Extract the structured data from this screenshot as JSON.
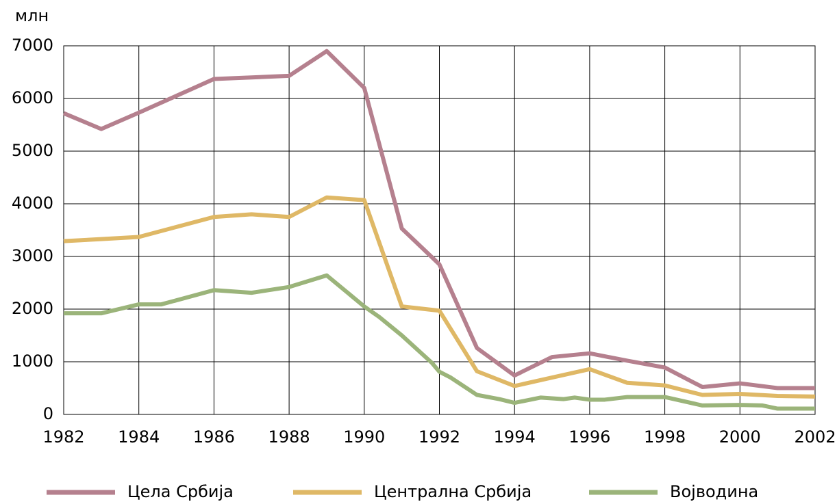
{
  "chart_data": {
    "type": "line",
    "ylabel": "млн",
    "xlim": [
      1982,
      2002
    ],
    "xticks": [
      1982,
      1984,
      1986,
      1988,
      1990,
      1992,
      1994,
      1996,
      1998,
      2000,
      2002
    ],
    "ylim": [
      0,
      7000
    ],
    "yticks": [
      0,
      1000,
      2000,
      3000,
      4000,
      5000,
      6000,
      7000
    ],
    "grid": true,
    "legend": "bottom",
    "series": [
      {
        "name": "Цела Србија",
        "color": "#b5808e",
        "x": [
          1982,
          1983,
          1984,
          1985,
          1986,
          1987,
          1988,
          1989,
          1990,
          1991,
          1992,
          1993,
          1994,
          1995,
          1996,
          1997,
          1998,
          1999,
          2000,
          2001,
          2002
        ],
        "values": [
          5720,
          5420,
          5730,
          6050,
          6370,
          6400,
          6430,
          6900,
          6200,
          3530,
          2850,
          1260,
          740,
          1090,
          1160,
          1020,
          890,
          520,
          590,
          500,
          500
        ]
      },
      {
        "name": "Централна Србија",
        "color": "#dfb866",
        "x": [
          1982,
          1983,
          1984,
          1985,
          1986,
          1987,
          1988,
          1989,
          1990,
          1991,
          1992,
          1993,
          1994,
          1995,
          1996,
          1997,
          1998,
          1999,
          2000,
          2001,
          2002
        ],
        "values": [
          3290,
          3330,
          3370,
          3560,
          3750,
          3800,
          3750,
          4120,
          4070,
          2050,
          1970,
          820,
          540,
          700,
          860,
          600,
          550,
          370,
          390,
          350,
          340
        ]
      },
      {
        "name": "Војводина",
        "color": "#9bb47a",
        "x": [
          1982,
          1983,
          1984,
          1984.6,
          1986,
          1987,
          1988,
          1989,
          1990,
          1990.4,
          1991,
          1991.8,
          1992,
          1992.3,
          1993,
          1993.6,
          1994,
          1994.7,
          1995.3,
          1995.6,
          1996,
          1996.4,
          1997,
          1998,
          1999,
          2000,
          2000.6,
          2001,
          2002
        ],
        "values": [
          1920,
          1920,
          2090,
          2090,
          2360,
          2310,
          2420,
          2640,
          2050,
          1850,
          1500,
          980,
          810,
          700,
          370,
          290,
          220,
          320,
          290,
          320,
          280,
          280,
          330,
          330,
          170,
          180,
          170,
          110,
          110
        ]
      }
    ]
  }
}
